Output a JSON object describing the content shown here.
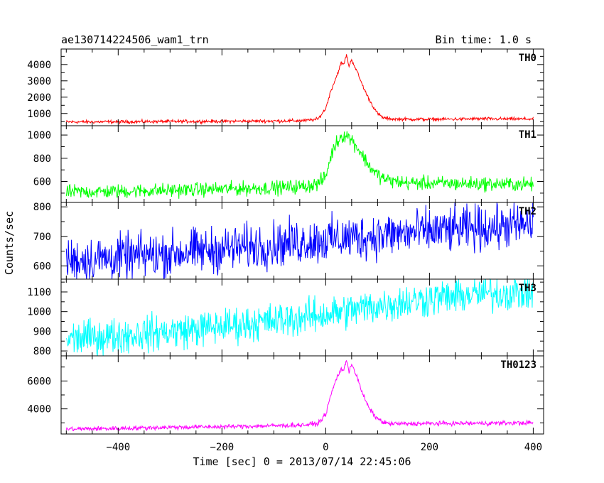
{
  "header": {
    "title": "ae130714224506_wam1_trn",
    "bin_time": "Bin time: 1.0 s"
  },
  "axes": {
    "ylabel": "Counts/sec",
    "xlabel": "Time [sec] 0 = 2013/07/14 22:45:06"
  },
  "chart_data": {
    "type": "line",
    "x_range": [
      -510,
      420
    ],
    "x_ticks": [
      -400,
      -200,
      0,
      200,
      400
    ],
    "x_tick_labels": [
      "−400",
      "−200",
      "0",
      "200",
      "400"
    ],
    "x_minor_step": 50,
    "series": [
      {
        "name": "TH0",
        "color": "#ff0000",
        "y_range": [
          250,
          4950
        ],
        "y_ticks": [
          1000,
          2000,
          3000,
          4000
        ],
        "y_tick_labels": [
          "1000",
          "2000",
          "3000",
          "4000"
        ],
        "minor_step": 500,
        "x": [
          -500,
          -400,
          -300,
          -200,
          -100,
          -40,
          -15,
          0,
          10,
          20,
          30,
          35,
          40,
          45,
          50,
          60,
          70,
          80,
          90,
          100,
          110,
          120,
          140,
          200,
          300,
          400
        ],
        "y": [
          480,
          490,
          510,
          520,
          540,
          560,
          650,
          1300,
          2400,
          3200,
          4100,
          4000,
          4600,
          3900,
          4300,
          3600,
          2800,
          2100,
          1500,
          1000,
          750,
          680,
          650,
          640,
          670,
          660
        ],
        "noise": 50
      },
      {
        "name": "TH1",
        "color": "#00ff00",
        "y_range": [
          420,
          1080
        ],
        "y_ticks": [
          600,
          800,
          1000
        ],
        "y_tick_labels": [
          "600",
          "800",
          "1000"
        ],
        "minor_step": 100,
        "x": [
          -500,
          -400,
          -300,
          -200,
          -100,
          -40,
          -15,
          0,
          10,
          20,
          30,
          40,
          50,
          60,
          70,
          80,
          90,
          100,
          110,
          120,
          150,
          200,
          300,
          400
        ],
        "y": [
          510,
          515,
          525,
          535,
          545,
          560,
          580,
          640,
          820,
          930,
          990,
          1000,
          960,
          900,
          830,
          760,
          700,
          660,
          630,
          610,
          590,
          585,
          580,
          575
        ],
        "noise": 30
      },
      {
        "name": "TH2",
        "color": "#0000ff",
        "y_range": [
          555,
          815
        ],
        "y_ticks": [
          600,
          700,
          800
        ],
        "y_tick_labels": [
          "600",
          "700",
          "800"
        ],
        "minor_step": 50,
        "x": [
          -500,
          -400,
          -300,
          -200,
          -100,
          0,
          100,
          200,
          300,
          400
        ],
        "y": [
          618,
          628,
          642,
          656,
          672,
          688,
          703,
          716,
          728,
          740
        ],
        "noise": 38
      },
      {
        "name": "TH3",
        "color": "#00ffff",
        "y_range": [
          775,
          1165
        ],
        "y_ticks": [
          800,
          900,
          1000,
          1100
        ],
        "y_tick_labels": [
          "800",
          "900",
          "1000",
          "1100"
        ],
        "minor_step": 50,
        "x": [
          -500,
          -400,
          -300,
          -200,
          -100,
          0,
          100,
          200,
          300,
          400
        ],
        "y": [
          860,
          878,
          898,
          925,
          952,
          985,
          1030,
          1065,
          1090,
          1100
        ],
        "noise": 45
      },
      {
        "name": "TH0123",
        "color": "#ff00ff",
        "y_range": [
          2200,
          7800
        ],
        "y_ticks": [
          4000,
          6000
        ],
        "y_tick_labels": [
          "4000",
          "6000"
        ],
        "minor_step": 1000,
        "x": [
          -500,
          -400,
          -300,
          -200,
          -100,
          -40,
          -15,
          0,
          10,
          20,
          30,
          35,
          40,
          45,
          50,
          60,
          70,
          80,
          90,
          100,
          110,
          120,
          140,
          200,
          300,
          400
        ],
        "y": [
          2550,
          2600,
          2680,
          2720,
          2790,
          2850,
          2950,
          3600,
          5000,
          6100,
          6900,
          6700,
          7550,
          6700,
          7250,
          6300,
          5200,
          4300,
          3700,
          3300,
          3050,
          2950,
          2930,
          2950,
          2970,
          3000
        ],
        "noise": 80
      }
    ]
  }
}
